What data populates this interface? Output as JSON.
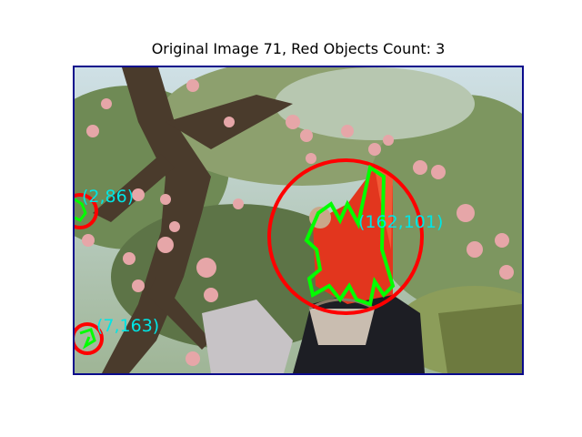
{
  "figure": {
    "title": "Original Image 71, Red Objects Count: 3",
    "accent_colors": {
      "circle": "#ff0000",
      "contour": "#00ff00",
      "label": "#00e5e5",
      "frame": "#0a0a8c"
    }
  },
  "photo": {
    "subject": "apple orchard with a person in red carrying a basket",
    "detections": [
      {
        "label": "(2,86)"
      },
      {
        "label": "(162,101)"
      },
      {
        "label": "(7,163)"
      }
    ]
  }
}
